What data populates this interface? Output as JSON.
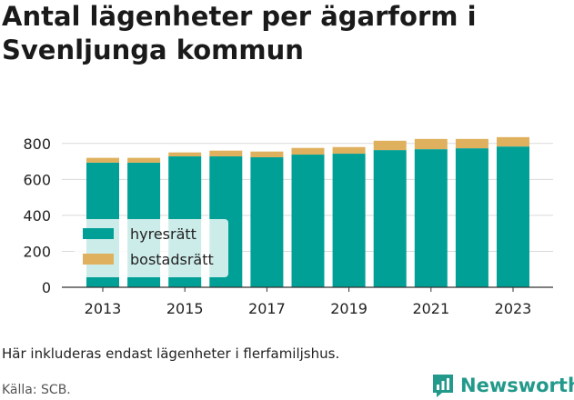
{
  "title": "Antal lägenheter per ägarform i\nSvenljunga kommun",
  "note": "Här inkluderas endast lägenheter i flerfamiljshus.",
  "source": "Källa: SCB.",
  "brand": {
    "name": "Newsworthy",
    "icon": "bar-chart-logo-icon",
    "color": "#22998a"
  },
  "chart_data": {
    "type": "bar",
    "stacked": true,
    "categories": [
      "2013",
      "2014",
      "2015",
      "2016",
      "2017",
      "2018",
      "2019",
      "2020",
      "2021",
      "2022",
      "2023"
    ],
    "x_tick_labels": [
      "2013",
      "2015",
      "2017",
      "2019",
      "2021",
      "2023"
    ],
    "series": [
      {
        "name": "hyresrätt",
        "color": "#00a097",
        "values": [
          693,
          693,
          728,
          728,
          723,
          738,
          743,
          763,
          768,
          773,
          783
        ]
      },
      {
        "name": "bostadsrätt",
        "color": "#dfb15e",
        "values": [
          27,
          27,
          22,
          32,
          32,
          37,
          37,
          52,
          57,
          52,
          52
        ]
      }
    ],
    "ylim": [
      0,
      900
    ],
    "y_ticks": [
      0,
      200,
      400,
      600,
      800
    ],
    "grid": true,
    "legend_position": "bottom-left",
    "xlabel": "",
    "ylabel": ""
  }
}
